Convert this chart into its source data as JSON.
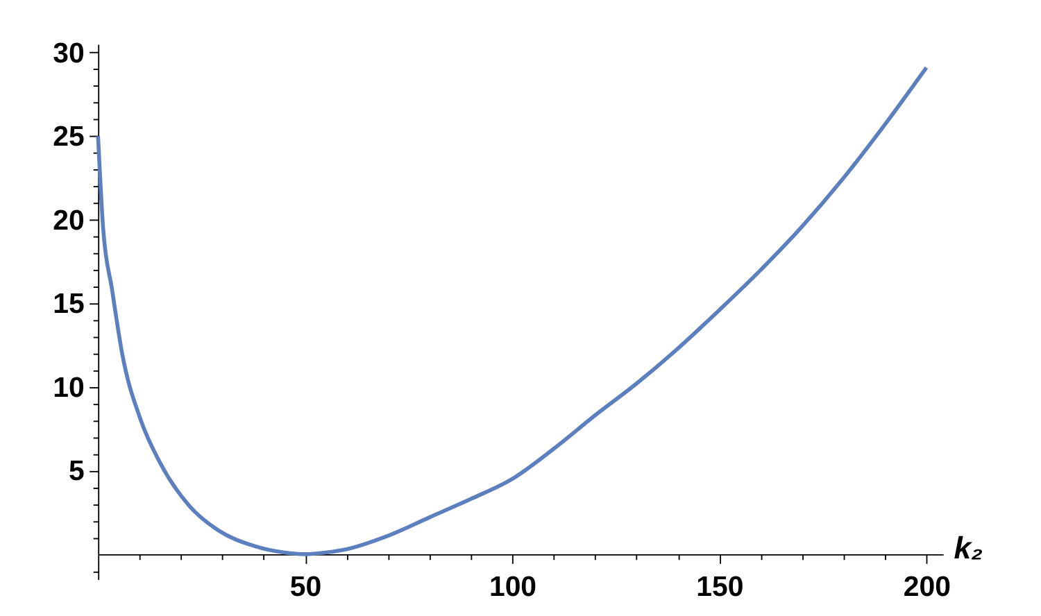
{
  "chart_data": {
    "type": "line",
    "xlabel": "k₂",
    "xlim": [
      0,
      204
    ],
    "ylim": [
      -1.5,
      30.5
    ],
    "xticks": [
      {
        "value": 10,
        "label": null
      },
      {
        "value": 20,
        "label": null
      },
      {
        "value": 30,
        "label": null
      },
      {
        "value": 40,
        "label": null
      },
      50,
      {
        "value": 60,
        "label": null
      },
      {
        "value": 70,
        "label": null
      },
      {
        "value": 80,
        "label": null
      },
      {
        "value": 90,
        "label": null
      },
      100,
      {
        "value": 110,
        "label": null
      },
      {
        "value": 120,
        "label": null
      },
      {
        "value": 130,
        "label": null
      },
      {
        "value": 140,
        "label": null
      },
      150,
      {
        "value": 160,
        "label": null
      },
      {
        "value": 170,
        "label": null
      },
      {
        "value": 180,
        "label": null
      },
      {
        "value": 190,
        "label": null
      },
      200
    ],
    "yticks": [
      {
        "value": -1,
        "label": null
      },
      {
        "value": 1,
        "label": null
      },
      {
        "value": 2,
        "label": null
      },
      {
        "value": 3,
        "label": null
      },
      {
        "value": 4,
        "label": null
      },
      5,
      {
        "value": 6,
        "label": null
      },
      {
        "value": 7,
        "label": null
      },
      {
        "value": 8,
        "label": null
      },
      {
        "value": 9,
        "label": null
      },
      10,
      {
        "value": 11,
        "label": null
      },
      {
        "value": 12,
        "label": null
      },
      {
        "value": 13,
        "label": null
      },
      {
        "value": 14,
        "label": null
      },
      15,
      {
        "value": 16,
        "label": null
      },
      {
        "value": 17,
        "label": null
      },
      {
        "value": 18,
        "label": null
      },
      {
        "value": 19,
        "label": null
      },
      20,
      {
        "value": 21,
        "label": null
      },
      {
        "value": 22,
        "label": null
      },
      {
        "value": 23,
        "label": null
      },
      {
        "value": 24,
        "label": null
      },
      25,
      {
        "value": 26,
        "label": null
      },
      {
        "value": 27,
        "label": null
      },
      {
        "value": 28,
        "label": null
      },
      {
        "value": 29,
        "label": null
      },
      30
    ],
    "grid": false,
    "legend": false,
    "marker": "none",
    "line_style": "solid",
    "series": [
      {
        "color": "#5b7fbf",
        "x": [
          0,
          1.2,
          3.4,
          5.9,
          10.2,
          14.9,
          22,
          29.2,
          37.6,
          45,
          50,
          55,
          60,
          70,
          80,
          90,
          100,
          110,
          120,
          130,
          140,
          150,
          160,
          170,
          180,
          190,
          200
        ],
        "values": [
          25,
          19.6,
          15.8,
          11.9,
          8.1,
          5.5,
          2.9,
          1.4,
          0.5,
          0.1,
          0,
          0.1,
          0.3,
          1.1,
          2.2,
          3.3,
          4.5,
          6.3,
          8.3,
          10.2,
          12.3,
          14.6,
          17,
          19.6,
          22.5,
          25.7,
          29.1
        ]
      }
    ]
  }
}
